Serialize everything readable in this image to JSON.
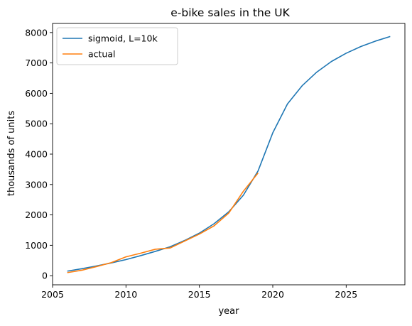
{
  "chart_data": {
    "type": "line",
    "title": "e-bike sales in the UK",
    "xlabel": "year",
    "ylabel": "thousands of units",
    "xlim": [
      2005,
      2029
    ],
    "ylim": [
      -300,
      8300
    ],
    "xticks": [
      2005,
      2010,
      2015,
      2020,
      2025
    ],
    "yticks": [
      0,
      1000,
      2000,
      3000,
      4000,
      5000,
      6000,
      7000,
      8000
    ],
    "grid": false,
    "legend_position": "upper-left",
    "series": [
      {
        "name": "sigmoid, L=10k",
        "color": "#1f77b4",
        "x": [
          2006,
          2007,
          2008,
          2009,
          2010,
          2011,
          2012,
          2013,
          2014,
          2015,
          2016,
          2017,
          2018,
          2019,
          2020,
          2021,
          2022,
          2023,
          2024,
          2025,
          2026,
          2027,
          2028
        ],
        "y": [
          150,
          230,
          320,
          420,
          530,
          660,
          800,
          950,
          1160,
          1400,
          1710,
          2100,
          2650,
          3450,
          4700,
          5650,
          6250,
          6700,
          7050,
          7320,
          7540,
          7720,
          7870
        ]
      },
      {
        "name": "actual",
        "color": "#ff7f0e",
        "x": [
          2006,
          2007,
          2008,
          2009,
          2010,
          2011,
          2012,
          2013,
          2014,
          2015,
          2016,
          2017,
          2018,
          2019
        ],
        "y": [
          100,
          180,
          300,
          430,
          620,
          740,
          870,
          910,
          1140,
          1370,
          1640,
          2060,
          2780,
          3380
        ]
      }
    ]
  }
}
